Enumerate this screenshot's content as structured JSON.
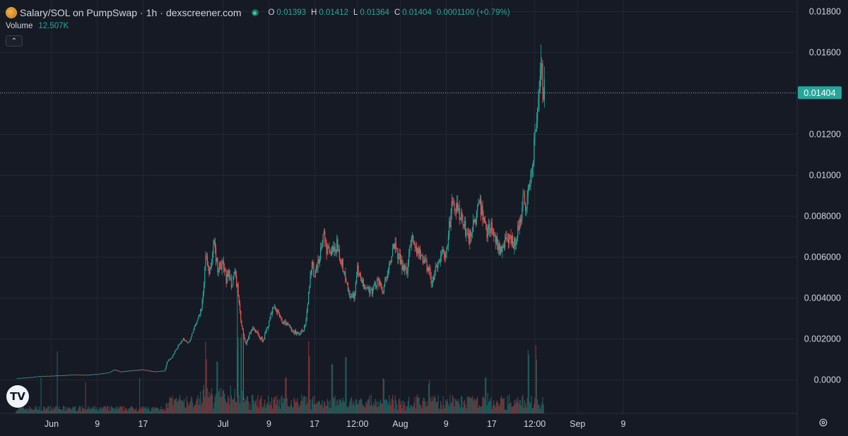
{
  "header": {
    "pair": "Salary/SOL on PumpSwap",
    "separator1": "·",
    "interval": "1h",
    "separator2": "·",
    "source": "dexscreener.com",
    "ohlc": {
      "o_label": "O",
      "o": "0.01393",
      "h_label": "H",
      "h": "0.01412",
      "l_label": "L",
      "l": "0.01364",
      "c_label": "C",
      "c": "0.01404",
      "change": "0.0001100 (+0.79%)"
    }
  },
  "volume": {
    "label": "Volume",
    "value": "12.507K"
  },
  "icons": {
    "logo": "salary-token-logo",
    "status": "live-status-dot",
    "collapse": "chevron-up-icon",
    "tv": "tradingview-logo",
    "settings": "gear-icon"
  },
  "colors": {
    "background": "#161a25",
    "up": "#26a69a",
    "down": "#ef5350",
    "grid": "#232733",
    "price_tag": "#26a69a"
  },
  "chart_data": {
    "type": "candlestick",
    "title": "Salary/SOL on PumpSwap · 1h · dexscreener.com",
    "y_ticks": [
      0.0,
      0.002,
      0.004,
      0.006,
      0.008,
      0.01,
      0.012,
      0.014,
      0.016,
      0.018
    ],
    "y_tick_labels": [
      "0.0000",
      "0.002000",
      "0.004000",
      "0.006000",
      "0.008000",
      "0.01000",
      "0.01200",
      "0.01400",
      "0.01600",
      "0.01800"
    ],
    "ylim": [
      -0.0016,
      0.0182
    ],
    "current_price": 0.01404,
    "current_price_label": "0.01404",
    "x_ticks": [
      {
        "label": "Jun",
        "day": 0
      },
      {
        "label": "9",
        "day": 8
      },
      {
        "label": "17",
        "day": 16
      },
      {
        "label": "Jul",
        "day": 30
      },
      {
        "label": "9",
        "day": 38
      },
      {
        "label": "17",
        "day": 46
      },
      {
        "label": "12:00",
        "day": 53.5
      },
      {
        "label": "Aug",
        "day": 61
      },
      {
        "label": "9",
        "day": 69
      },
      {
        "label": "17",
        "day": 77
      },
      {
        "label": "12:00",
        "day": 84.5
      },
      {
        "label": "Sep",
        "day": 92
      },
      {
        "label": "9",
        "day": 100
      }
    ],
    "close_path_day_value": [
      [
        -6.2,
        8e-05
      ],
      [
        -4,
        0.00012
      ],
      [
        -2,
        0.00018
      ],
      [
        0,
        0.0002
      ],
      [
        2,
        0.00022
      ],
      [
        4,
        0.00026
      ],
      [
        6,
        0.00024
      ],
      [
        8,
        0.00028
      ],
      [
        10,
        0.00036
      ],
      [
        11,
        0.0005
      ],
      [
        12,
        0.0004
      ],
      [
        14,
        0.00045
      ],
      [
        16,
        0.0005
      ],
      [
        18,
        0.0004
      ],
      [
        19.8,
        0.00045
      ],
      [
        20.2,
        0.0009
      ],
      [
        21,
        0.0011
      ],
      [
        22,
        0.0016
      ],
      [
        23,
        0.002
      ],
      [
        24,
        0.0018
      ],
      [
        25,
        0.0026
      ],
      [
        26,
        0.0033
      ],
      [
        26.5,
        0.0041
      ],
      [
        27,
        0.0063
      ],
      [
        27.5,
        0.0053
      ],
      [
        28,
        0.0056
      ],
      [
        28.5,
        0.0068
      ],
      [
        29,
        0.0054
      ],
      [
        30,
        0.0057
      ],
      [
        30.5,
        0.0049
      ],
      [
        31,
        0.0052
      ],
      [
        31.5,
        0.0047
      ],
      [
        32,
        0.0053
      ],
      [
        32.5,
        0.0045
      ],
      [
        33,
        0.0031
      ],
      [
        33.5,
        0.0022
      ],
      [
        34,
        0.0018
      ],
      [
        35,
        0.0025
      ],
      [
        36,
        0.0023
      ],
      [
        37,
        0.0019
      ],
      [
        38,
        0.0028
      ],
      [
        39,
        0.0037
      ],
      [
        40,
        0.003
      ],
      [
        41,
        0.0027
      ],
      [
        42,
        0.0025
      ],
      [
        43,
        0.0022
      ],
      [
        44,
        0.0024
      ],
      [
        44.5,
        0.0028
      ],
      [
        45,
        0.0045
      ],
      [
        45.5,
        0.0058
      ],
      [
        46,
        0.005
      ],
      [
        47,
        0.0061
      ],
      [
        47.5,
        0.0073
      ],
      [
        48,
        0.0064
      ],
      [
        49,
        0.0062
      ],
      [
        50,
        0.0066
      ],
      [
        51,
        0.0055
      ],
      [
        52,
        0.0042
      ],
      [
        53,
        0.004
      ],
      [
        53.5,
        0.0055
      ],
      [
        54,
        0.0048
      ],
      [
        55,
        0.0046
      ],
      [
        56,
        0.0043
      ],
      [
        57,
        0.0049
      ],
      [
        58,
        0.0042
      ],
      [
        59,
        0.0058
      ],
      [
        60,
        0.0065
      ],
      [
        61,
        0.0058
      ],
      [
        62,
        0.0052
      ],
      [
        63,
        0.007
      ],
      [
        64,
        0.0064
      ],
      [
        65,
        0.0058
      ],
      [
        66,
        0.0054
      ],
      [
        66.5,
        0.0048
      ],
      [
        67,
        0.0052
      ],
      [
        68,
        0.0062
      ],
      [
        69,
        0.006
      ],
      [
        70,
        0.0086
      ],
      [
        71,
        0.0083
      ],
      [
        72,
        0.0076
      ],
      [
        73,
        0.0069
      ],
      [
        74,
        0.0078
      ],
      [
        75,
        0.0085
      ],
      [
        76,
        0.0072
      ],
      [
        77,
        0.0076
      ],
      [
        78,
        0.0066
      ],
      [
        78.5,
        0.0063
      ],
      [
        79,
        0.0066
      ],
      [
        80,
        0.0068
      ],
      [
        81,
        0.0067
      ],
      [
        82,
        0.0078
      ],
      [
        82.5,
        0.009
      ],
      [
        83,
        0.0085
      ],
      [
        83.5,
        0.0094
      ],
      [
        84,
        0.0101
      ],
      [
        84.5,
        0.012
      ],
      [
        85,
        0.0128
      ],
      [
        85.3,
        0.0138
      ],
      [
        85.6,
        0.0155
      ],
      [
        85.9,
        0.0147
      ],
      [
        86.2,
        0.01404
      ]
    ],
    "max_high": 0.0164,
    "volume_peaks_day": [
      [
        27,
        0.85
      ],
      [
        29,
        0.75
      ],
      [
        32.5,
        1.0
      ],
      [
        33.2,
        0.95
      ],
      [
        41,
        0.45
      ],
      [
        45,
        0.95
      ],
      [
        49,
        0.7
      ],
      [
        51.5,
        0.9
      ],
      [
        58,
        0.55
      ],
      [
        66,
        0.5
      ],
      [
        76,
        0.6
      ],
      [
        83.5,
        0.75
      ],
      [
        84.8,
        0.9
      ]
    ]
  }
}
